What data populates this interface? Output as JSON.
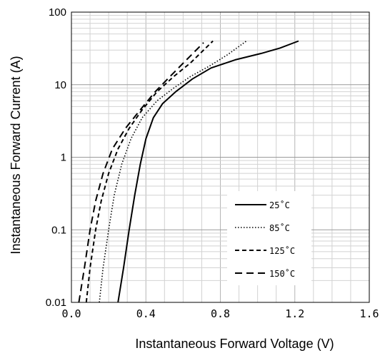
{
  "chart_data": {
    "type": "line",
    "xlabel": "Instantaneous Forward Voltage (V)",
    "ylabel": "Instantaneous Forward Current (A)",
    "xlim": [
      0.0,
      1.6
    ],
    "ylim": [
      0.01,
      100
    ],
    "yscale": "log",
    "x_ticks": [
      "0.0",
      "0.4",
      "0.8",
      "1.2",
      "1.6"
    ],
    "y_ticks": [
      "0.01",
      "0.1",
      "1",
      "10",
      "100"
    ],
    "grid": true,
    "legend_position": "bottom-right",
    "series": [
      {
        "name": "25˚C",
        "dash": "solid",
        "points": [
          [
            0.25,
            0.01
          ],
          [
            0.28,
            0.03
          ],
          [
            0.31,
            0.1
          ],
          [
            0.34,
            0.3
          ],
          [
            0.37,
            0.8
          ],
          [
            0.4,
            1.8
          ],
          [
            0.44,
            3.5
          ],
          [
            0.49,
            5.5
          ],
          [
            0.56,
            8
          ],
          [
            0.65,
            12
          ],
          [
            0.75,
            17
          ],
          [
            0.88,
            22
          ],
          [
            1.02,
            27
          ],
          [
            1.12,
            32
          ],
          [
            1.22,
            40
          ]
        ]
      },
      {
        "name": "85˚C",
        "dash": "dotted",
        "points": [
          [
            0.15,
            0.01
          ],
          [
            0.17,
            0.03
          ],
          [
            0.2,
            0.1
          ],
          [
            0.23,
            0.3
          ],
          [
            0.27,
            0.8
          ],
          [
            0.32,
            1.8
          ],
          [
            0.38,
            3.5
          ],
          [
            0.46,
            6
          ],
          [
            0.55,
            9
          ],
          [
            0.64,
            13
          ],
          [
            0.74,
            18
          ],
          [
            0.84,
            26
          ],
          [
            0.94,
            40
          ]
        ]
      },
      {
        "name": "125˚C",
        "dash": "dashed",
        "points": [
          [
            0.08,
            0.01
          ],
          [
            0.1,
            0.03
          ],
          [
            0.13,
            0.1
          ],
          [
            0.16,
            0.25
          ],
          [
            0.2,
            0.6
          ],
          [
            0.25,
            1.3
          ],
          [
            0.31,
            2.5
          ],
          [
            0.38,
            4.5
          ],
          [
            0.46,
            8
          ],
          [
            0.55,
            13
          ],
          [
            0.64,
            20
          ],
          [
            0.76,
            40
          ]
        ]
      },
      {
        "name": "150˚C",
        "dash": "longdash",
        "points": [
          [
            0.04,
            0.01
          ],
          [
            0.07,
            0.03
          ],
          [
            0.1,
            0.1
          ],
          [
            0.13,
            0.25
          ],
          [
            0.17,
            0.6
          ],
          [
            0.22,
            1.3
          ],
          [
            0.29,
            2.5
          ],
          [
            0.37,
            4.5
          ],
          [
            0.45,
            8
          ],
          [
            0.53,
            13
          ],
          [
            0.61,
            21
          ],
          [
            0.71,
            38
          ]
        ]
      }
    ]
  }
}
